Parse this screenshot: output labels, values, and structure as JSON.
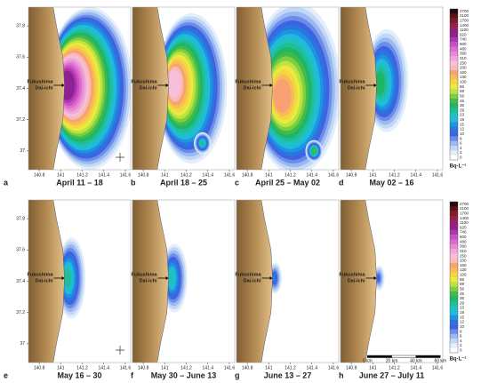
{
  "panels": [
    {
      "letter": "a",
      "label": "April 11 – 18"
    },
    {
      "letter": "b",
      "label": "April 18 – 25"
    },
    {
      "letter": "c",
      "label": "April 25 – May 02"
    },
    {
      "letter": "d",
      "label": "May 02 – 16"
    },
    {
      "letter": "e",
      "label": "May 16 – 30"
    },
    {
      "letter": "f",
      "label": "May 30 – June 13"
    },
    {
      "letter": "g",
      "label": "June 13 – 27"
    },
    {
      "letter": "h",
      "label": "June 27 – July 11"
    }
  ],
  "lat_ticks": [
    37.8,
    37.6,
    37.4,
    37.2,
    37
  ],
  "lon_ticks": [
    140.8,
    141,
    141.2,
    141.4,
    141.6
  ],
  "latlim": [
    36.88,
    37.92
  ],
  "lonlim": [
    140.7,
    141.65
  ],
  "site_label": [
    "Fukushima",
    "Dai-ichi"
  ],
  "colorbar": {
    "levels": [
      2700,
      2100,
      1700,
      1400,
      1100,
      920,
      740,
      600,
      480,
      390,
      310,
      250,
      200,
      160,
      130,
      100,
      86,
      69,
      56,
      45,
      36,
      29,
      23,
      19,
      15,
      12,
      10,
      8,
      6,
      4,
      2,
      0
    ],
    "unit": "Bq·L⁻¹",
    "colors": [
      "#2a0a0a",
      "#7a1a1a",
      "#a0205a",
      "#8a2090",
      "#c040c0",
      "#e070d0",
      "#f0a0d8",
      "#f8c8d8",
      "#f8a070",
      "#f8d040",
      "#e8f040",
      "#80d040",
      "#20b050",
      "#20c0a0",
      "#20c0e0",
      "#2080e0",
      "#4060e0",
      "#90b0f0",
      "#d0e4f8",
      "#ffffff"
    ]
  },
  "scalebar": [
    "0 km",
    "20 km",
    "40 km",
    "60 km"
  ]
}
